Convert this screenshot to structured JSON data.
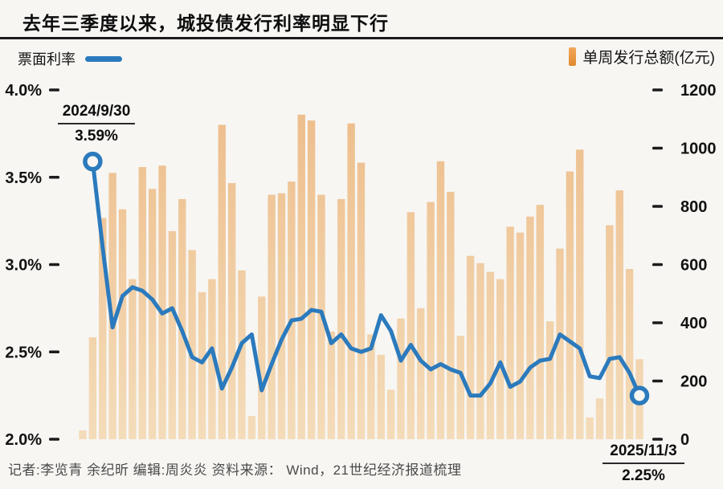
{
  "title": "去年三季度以来，城投债发行利率明显下行",
  "legend": {
    "line_label": "票面利率",
    "bar_label": "单周发行总额(亿元)"
  },
  "annotations": {
    "start": {
      "date": "2024/9/30",
      "rate": "3.59%"
    },
    "end": {
      "date": "2025/11/3",
      "rate": "2.25%"
    }
  },
  "footer": "记者:李览青 余纪昕  编辑:周炎炎  资料来源： Wind，21世纪经济报道梳理",
  "colors": {
    "line": "#2b7abd",
    "marker_fill": "#f7f6f3",
    "bar_top": "#edbc89",
    "bar_bottom": "#f4dcba",
    "legend_bar_top": "#f2a75a",
    "legend_bar_bottom": "#e18a2f",
    "tick": "#1c1c1c",
    "axis_text": "#121212"
  },
  "chart_data": {
    "type": "bar+line",
    "x_unit": "week",
    "x_first_label": "2024/9/30",
    "x_last_label": "2025/11/3",
    "grid": false,
    "left_axis": {
      "title": "票面利率",
      "tick_labels": [
        "4.0%",
        "3.5%",
        "3.0%",
        "2.5%",
        "2.0%"
      ],
      "tick_values": [
        4.0,
        3.5,
        3.0,
        2.5,
        2.0
      ],
      "min": 2.0,
      "max": 4.0
    },
    "right_axis": {
      "title": "单周发行总额(亿元)",
      "tick_labels": [
        "1200",
        "1000",
        "800",
        "600",
        "400",
        "200",
        "0"
      ],
      "tick_values": [
        1200,
        1000,
        800,
        600,
        400,
        200,
        0
      ],
      "min": 0,
      "max": 1200
    },
    "bar_series": {
      "name": "单周发行总额(亿元)",
      "axis": "right",
      "values": [
        30,
        350,
        760,
        915,
        790,
        550,
        935,
        860,
        940,
        715,
        825,
        650,
        505,
        550,
        1080,
        880,
        580,
        80,
        490,
        840,
        845,
        885,
        1115,
        1095,
        840,
        370,
        825,
        1085,
        950,
        360,
        290,
        170,
        415,
        780,
        450,
        815,
        955,
        850,
        355,
        630,
        605,
        575,
        550,
        730,
        710,
        765,
        805,
        405,
        655,
        920,
        995,
        75,
        140,
        735,
        855,
        585,
        275
      ]
    },
    "line_series": {
      "name": "票面利率",
      "axis": "left",
      "unit": "%",
      "values": [
        null,
        3.59,
        3.1,
        2.64,
        2.82,
        2.87,
        2.85,
        2.8,
        2.72,
        2.75,
        2.62,
        2.47,
        2.44,
        2.52,
        2.29,
        2.41,
        2.55,
        2.6,
        2.28,
        2.43,
        2.57,
        2.68,
        2.69,
        2.74,
        2.73,
        2.55,
        2.6,
        2.52,
        2.5,
        2.52,
        2.71,
        2.62,
        2.45,
        2.54,
        2.45,
        2.4,
        2.43,
        2.4,
        2.38,
        2.25,
        2.25,
        2.32,
        2.44,
        2.3,
        2.33,
        2.41,
        2.45,
        2.46,
        2.6,
        2.56,
        2.52,
        2.36,
        2.35,
        2.46,
        2.47,
        2.38,
        2.25
      ],
      "start_point": {
        "label": "2024/9/30",
        "value": 3.59
      },
      "end_point": {
        "label": "2025/11/3",
        "value": 2.25
      }
    }
  }
}
